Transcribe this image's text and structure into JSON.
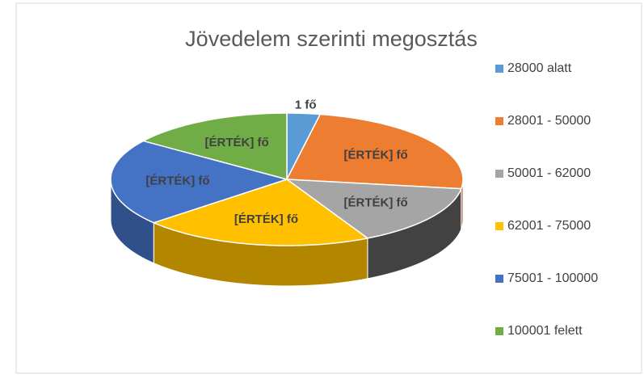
{
  "chart_data": {
    "type": "pie3d",
    "title": "Jövedelem szerinti megosztás",
    "categories": [
      "28000 alatt",
      "28001 - 50000",
      "50001 - 62000",
      "62001 - 75000",
      "75001 - 100000",
      "100001 felett"
    ],
    "values": [
      1,
      8,
      5,
      7,
      7,
      5
    ],
    "value_labels": [
      "1 fő",
      "[ÉRTÉK] fő",
      "[ÉRTÉK] fő",
      "[ÉRTÉK] fő",
      "[ÉRTÉK] fő",
      "[ÉRTÉK] fő"
    ],
    "colors": [
      "#5b9bd5",
      "#ed7d31",
      "#a5a5a5",
      "#ffc000",
      "#4472c4",
      "#70ad47"
    ],
    "legend": "right"
  }
}
